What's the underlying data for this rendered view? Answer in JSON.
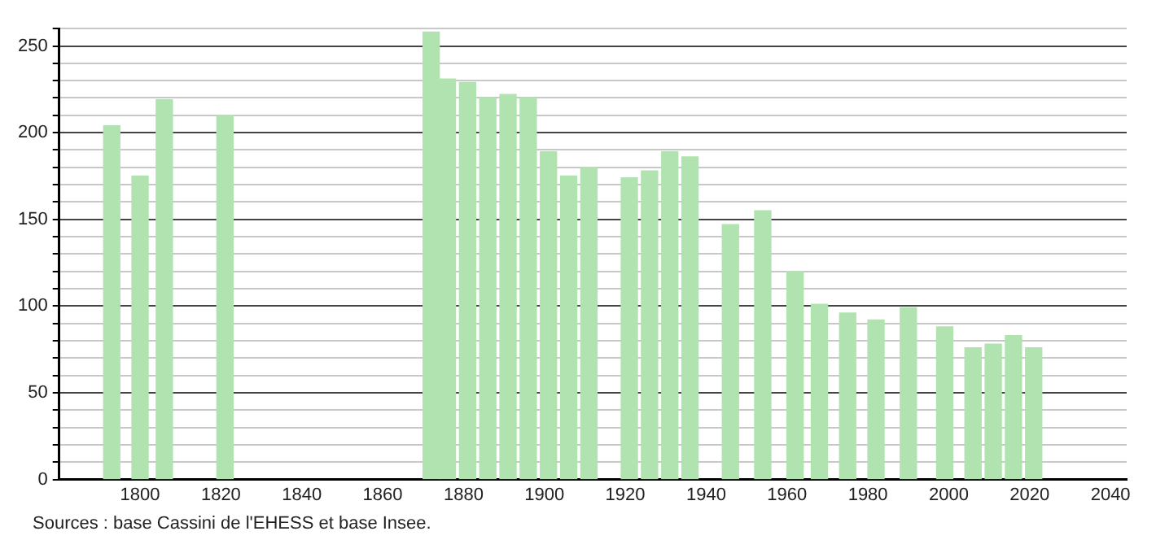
{
  "chart_data": {
    "type": "bar",
    "x": [
      1793,
      1800,
      1806,
      1821,
      1872,
      1876,
      1881,
      1886,
      1891,
      1896,
      1901,
      1906,
      1911,
      1921,
      1926,
      1931,
      1936,
      1946,
      1954,
      1962,
      1968,
      1975,
      1982,
      1990,
      1999,
      2006,
      2011,
      2016,
      2021
    ],
    "values": [
      204,
      175,
      219,
      210,
      258,
      231,
      229,
      220,
      222,
      220,
      189,
      175,
      180,
      174,
      178,
      189,
      186,
      147,
      155,
      120,
      101,
      96,
      92,
      99,
      88,
      76,
      78,
      83,
      76
    ],
    "color": "#b0e3b0",
    "xlim": [
      1780,
      2044
    ],
    "xticks": [
      1800,
      1820,
      1840,
      1860,
      1880,
      1900,
      1920,
      1940,
      1960,
      1980,
      2000,
      2020,
      2040
    ],
    "ylim": [
      0,
      260
    ],
    "yticks": [
      0,
      {
        "value": 10,
        "label": null
      },
      {
        "value": 20,
        "label": null
      },
      {
        "value": 30,
        "label": null
      },
      {
        "value": 40,
        "label": null
      },
      50,
      {
        "value": 60,
        "label": null
      },
      {
        "value": 70,
        "label": null
      },
      {
        "value": 80,
        "label": null
      },
      {
        "value": 90,
        "label": null
      },
      100,
      {
        "value": 110,
        "label": null
      },
      {
        "value": 120,
        "label": null
      },
      {
        "value": 130,
        "label": null
      },
      {
        "value": 140,
        "label": null
      },
      150,
      {
        "value": 160,
        "label": null
      },
      {
        "value": 170,
        "label": null
      },
      {
        "value": 180,
        "label": null
      },
      {
        "value": 190,
        "label": null
      },
      200,
      {
        "value": 210,
        "label": null
      },
      {
        "value": 220,
        "label": null
      },
      {
        "value": 230,
        "label": null
      },
      {
        "value": 240,
        "label": null
      },
      250,
      {
        "value": 260,
        "label": null
      }
    ],
    "grid": "y",
    "annotations": [
      "Sources : base Cassini de l'EHESS et base Insee."
    ]
  }
}
